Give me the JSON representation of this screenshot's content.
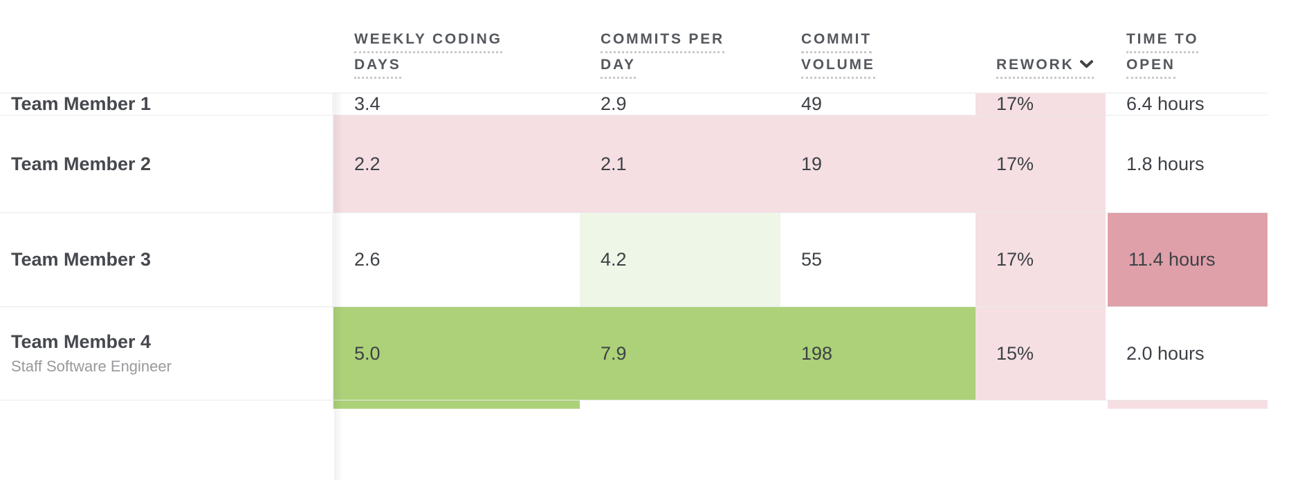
{
  "colors": {
    "strong_green": "#acd178",
    "light_green": "#eef6e7",
    "light_pink": "#f5dfe3",
    "rose": "#dfa0a9",
    "none": "transparent",
    "header_text": "#54585d",
    "body_text": "#3d4146",
    "subtitle_text": "#97999c",
    "divider": "#eaeaea"
  },
  "table": {
    "header": {
      "columns": [
        {
          "id": "member",
          "lines": []
        },
        {
          "id": "weekly-coding-days",
          "lines": [
            "WEEKLY CODING",
            "DAYS"
          ]
        },
        {
          "id": "commits-per-day",
          "lines": [
            "COMMITS PER",
            "DAY"
          ]
        },
        {
          "id": "commit-volume",
          "lines": [
            "COMMIT",
            "VOLUME"
          ]
        },
        {
          "id": "rework",
          "lines": [
            "REWORK"
          ],
          "sort": "desc"
        },
        {
          "id": "time-to-open",
          "lines": [
            "TIME TO",
            "OPEN"
          ]
        }
      ]
    },
    "rows": [
      {
        "name": "Team Member 1",
        "subtitle": "",
        "cells": [
          {
            "value": "3.4",
            "bg": "none"
          },
          {
            "value": "2.9",
            "bg": "none"
          },
          {
            "value": "49",
            "bg": "none"
          },
          {
            "value": "17%",
            "bg": "light_pink"
          },
          {
            "value": "6.4 hours",
            "bg": "none"
          }
        ]
      },
      {
        "name": "Team Member 2",
        "subtitle": "",
        "cells": [
          {
            "value": "2.2",
            "bg": "light_pink"
          },
          {
            "value": "2.1",
            "bg": "light_pink"
          },
          {
            "value": "19",
            "bg": "light_pink"
          },
          {
            "value": "17%",
            "bg": "light_pink"
          },
          {
            "value": "1.8 hours",
            "bg": "none"
          }
        ]
      },
      {
        "name": "Team Member 3",
        "subtitle": "",
        "cells": [
          {
            "value": "2.6",
            "bg": "none"
          },
          {
            "value": "4.2",
            "bg": "light_green"
          },
          {
            "value": "55",
            "bg": "none"
          },
          {
            "value": "17%",
            "bg": "light_pink"
          },
          {
            "value": "11.4 hours",
            "bg": "rose"
          }
        ]
      },
      {
        "name": "Team Member 4",
        "subtitle": "Staff Software Engineer",
        "cells": [
          {
            "value": "5.0",
            "bg": "strong_green"
          },
          {
            "value": "7.9",
            "bg": "strong_green"
          },
          {
            "value": "198",
            "bg": "strong_green"
          },
          {
            "value": "15%",
            "bg": "light_pink"
          },
          {
            "value": "2.0 hours",
            "bg": "none"
          }
        ]
      }
    ],
    "partial_next_row": {
      "cells": [
        {
          "bg": "strong_green"
        },
        {
          "bg": "none"
        },
        {
          "bg": "none"
        },
        {
          "bg": "none"
        },
        {
          "bg": "light_pink"
        }
      ]
    }
  }
}
